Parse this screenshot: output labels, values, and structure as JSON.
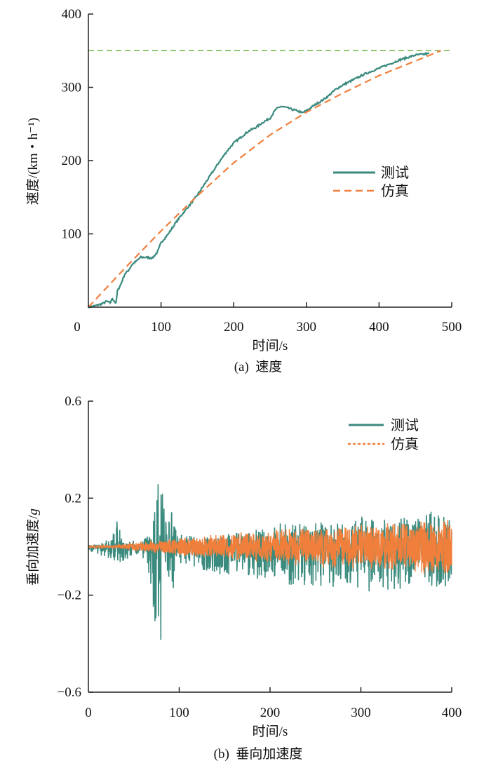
{
  "chart_data": [
    {
      "type": "line",
      "caption": "(a)  速度",
      "xlabel": "时间/s",
      "ylabel": "速度/(km・h⁻¹)",
      "xlim": [
        0,
        500
      ],
      "ylim": [
        0,
        400
      ],
      "xticks": [
        "0",
        "100",
        "200",
        "300",
        "400",
        "500"
      ],
      "yticks": [
        "100",
        "200",
        "300",
        "400"
      ],
      "grid": false,
      "legend_position": "center-right",
      "reference_line": {
        "y": 350,
        "color": "#6cb33f",
        "style": "dashed"
      },
      "series": [
        {
          "name": "测试",
          "color": "#3a8a7e",
          "style": "solid",
          "x": [
            0,
            10,
            20,
            25,
            30,
            33,
            38,
            40,
            45,
            50,
            55,
            60,
            65,
            72,
            80,
            88,
            95,
            100,
            110,
            120,
            130,
            140,
            150,
            160,
            170,
            180,
            190,
            200,
            210,
            220,
            230,
            240,
            250,
            258,
            265,
            270,
            280,
            290,
            294,
            300,
            310,
            320,
            330,
            340,
            350,
            360,
            370,
            380,
            390,
            400,
            410,
            420,
            430,
            440,
            450,
            460,
            469
          ],
          "y": [
            0,
            2,
            5,
            8,
            6,
            12,
            5,
            22,
            32,
            45,
            50,
            58,
            62,
            68,
            68,
            67,
            75,
            88,
            100,
            115,
            128,
            140,
            153,
            168,
            183,
            198,
            212,
            224,
            232,
            240,
            245,
            252,
            258,
            270,
            274,
            273,
            270,
            267,
            265,
            268,
            275,
            281,
            288,
            297,
            303,
            308,
            313,
            318,
            322,
            326,
            330,
            334,
            338,
            341,
            344,
            345,
            346
          ]
        },
        {
          "name": "仿真",
          "color": "#f07f3c",
          "style": "dashed",
          "x": [
            0,
            50,
            100,
            150,
            200,
            250,
            300,
            350,
            400,
            450,
            485
          ],
          "y": [
            0,
            53,
            104,
            152,
            197,
            235,
            266,
            292,
            316,
            336,
            350
          ]
        }
      ]
    },
    {
      "type": "line",
      "caption": "(b)  垂向加速度",
      "xlabel": "时间/s",
      "ylabel": "垂向加速度/",
      "ylabel_unit": "g",
      "xlim": [
        0,
        400
      ],
      "ylim": [
        -0.6,
        0.6
      ],
      "xticks": [
        "0",
        "100",
        "200",
        "300",
        "400"
      ],
      "yticks": [
        "0.6",
        "0.2",
        "−0.2",
        "−0.6"
      ],
      "grid": false,
      "legend_position": "top-right",
      "series": [
        {
          "name": "测试",
          "color": "#3a8a7e",
          "style": "solid",
          "envelope_t": [
            0,
            10,
            20,
            28,
            33,
            38,
            45,
            60,
            65,
            70,
            73,
            75,
            78,
            80,
            83,
            86,
            93,
            97,
            100,
            130,
            150,
            180,
            200,
            208,
            210,
            212,
            230,
            250,
            270,
            290,
            300,
            315,
            330,
            350,
            370,
            380,
            390,
            400
          ],
          "envelope_upper": [
            0.01,
            0.02,
            0.03,
            0.06,
            0.14,
            0.03,
            0.03,
            0.02,
            0.06,
            0.03,
            0.3,
            0.32,
            0.29,
            0.26,
            0.28,
            0.1,
            0.2,
            0.05,
            0.05,
            0.04,
            0.05,
            0.07,
            0.08,
            0.08,
            0.2,
            0.09,
            0.1,
            0.1,
            0.1,
            0.11,
            0.13,
            0.11,
            0.12,
            0.12,
            0.13,
            0.16,
            0.13,
            0.12
          ],
          "envelope_lower": [
            -0.02,
            -0.03,
            -0.05,
            -0.07,
            -0.19,
            -0.06,
            -0.05,
            -0.05,
            -0.1,
            -0.21,
            -0.37,
            -0.36,
            -0.3,
            -0.54,
            -0.25,
            -0.2,
            -0.21,
            -0.07,
            -0.07,
            -0.1,
            -0.12,
            -0.13,
            -0.14,
            -0.14,
            -0.21,
            -0.15,
            -0.17,
            -0.16,
            -0.17,
            -0.17,
            -0.17,
            -0.2,
            -0.19,
            -0.17,
            -0.17,
            -0.17,
            -0.18,
            -0.18
          ]
        },
        {
          "name": "仿真",
          "color": "#f07f3c",
          "style": "dotted",
          "envelope_t": [
            0,
            30,
            50,
            100,
            150,
            200,
            250,
            300,
            350,
            400
          ],
          "envelope_amplitude": [
            0.003,
            0.008,
            0.02,
            0.04,
            0.055,
            0.07,
            0.085,
            0.1,
            0.11,
            0.13
          ]
        }
      ]
    }
  ]
}
